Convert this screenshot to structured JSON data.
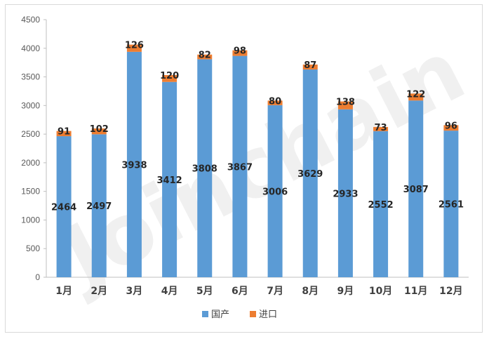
{
  "watermark": "Joinchain",
  "chart_data": {
    "type": "bar",
    "stacked": true,
    "categories": [
      "1月",
      "2月",
      "3月",
      "4月",
      "5月",
      "6月",
      "7月",
      "8月",
      "9月",
      "10月",
      "11月",
      "12月"
    ],
    "series": [
      {
        "name": "国产",
        "color": "#5B9BD5",
        "values": [
          2464,
          2497,
          3938,
          3412,
          3808,
          3867,
          3006,
          3629,
          2933,
          2552,
          3087,
          2561
        ]
      },
      {
        "name": "进口",
        "color": "#ED7D31",
        "values": [
          91,
          102,
          126,
          120,
          82,
          98,
          80,
          87,
          138,
          73,
          122,
          96
        ]
      }
    ],
    "ylim": [
      0,
      4500
    ],
    "yticks": [
      0,
      500,
      1000,
      1500,
      2000,
      2500,
      3000,
      3500,
      4000,
      4500
    ],
    "legend_position": "bottom",
    "grid": false
  }
}
